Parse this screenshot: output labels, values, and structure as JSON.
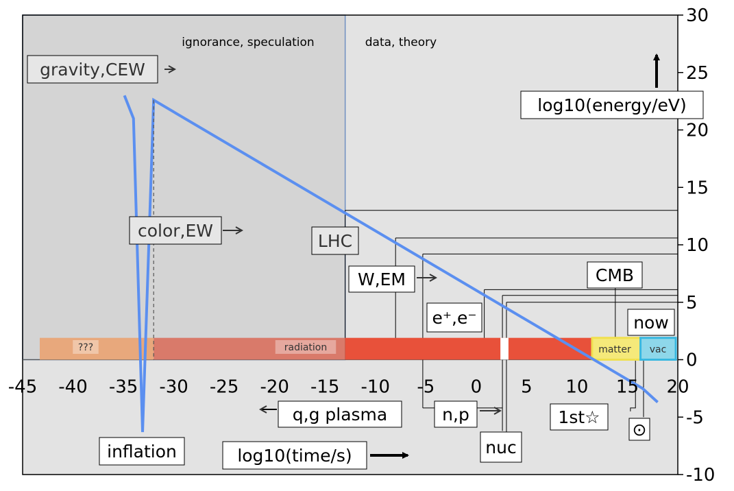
{
  "chart_data": {
    "type": "line",
    "xlabel": "log10(time/s)",
    "ylabel": "log10(energy/eV)",
    "xlim": [
      -45,
      20
    ],
    "ylim": [
      -10,
      30
    ],
    "xticks": [
      -45,
      -40,
      -35,
      -30,
      -25,
      -20,
      -15,
      -10,
      -5,
      0,
      5,
      10,
      15,
      20
    ],
    "yticks": [
      -10,
      -5,
      0,
      5,
      10,
      15,
      20,
      25,
      30
    ],
    "regions": [
      {
        "label": "ignorance, speculation",
        "x": [
          -45,
          -13
        ],
        "color": "#d4d4d4"
      },
      {
        "label": "data, theory",
        "x": [
          -13,
          20
        ],
        "color": "#e3e3e3"
      }
    ],
    "series": [
      {
        "values": [
          [
            -34.9,
            23
          ],
          [
            -34,
            21
          ],
          [
            -33.1,
            -6.3
          ],
          [
            -32,
            22.6
          ],
          [
            16.5,
            -2.5
          ],
          [
            18,
            -3.7
          ]
        ]
      }
    ],
    "eras": [
      {
        "label": "???",
        "x": [
          -43.3,
          -32
        ],
        "color": "#e8a87c"
      },
      {
        "label": "radiation",
        "x": [
          -32,
          -13
        ],
        "color": "#d97a6a"
      },
      {
        "label": "",
        "x": [
          -13,
          11.5
        ],
        "color": "#e8513a"
      },
      {
        "label": "matter",
        "x": [
          11.5,
          16.3
        ],
        "color": "#f5e97a"
      },
      {
        "label": "vac",
        "x": [
          16.3,
          19.8
        ],
        "color": "#8ed7ea"
      }
    ],
    "annotations": [
      {
        "label": "gravity,CEW",
        "x": -34.9,
        "y": 23
      },
      {
        "label": "color,EW",
        "x": -32,
        "y": 13
      },
      {
        "label": "LHC",
        "x": -13,
        "y": 13
      },
      {
        "label": "W,EM",
        "x": -8,
        "y": 10.6
      },
      {
        "label": "e⁺,e⁻",
        "x": 0.8,
        "y": 6
      },
      {
        "label": "CMB",
        "x": 13.8,
        "y": 0.7
      },
      {
        "label": "now",
        "x": 17.4,
        "y": 1
      },
      {
        "label": "q,g plasma",
        "x": -5.3,
        "y": 9.2
      },
      {
        "label": "n,p",
        "x": 2.6,
        "y": 5.3
      },
      {
        "label": "nuc",
        "x": 3,
        "y": 5
      },
      {
        "label": "1st☆",
        "x": 15.3,
        "y": 1
      },
      {
        "label": "⊙",
        "x": 16.6,
        "y": 0
      },
      {
        "label": "inflation",
        "x": -33.1,
        "y": -6.3
      }
    ],
    "legend": "none"
  },
  "colors": {
    "curve": "#5b8ff0",
    "axis": "#000000",
    "divider": "#6f8fc0"
  }
}
